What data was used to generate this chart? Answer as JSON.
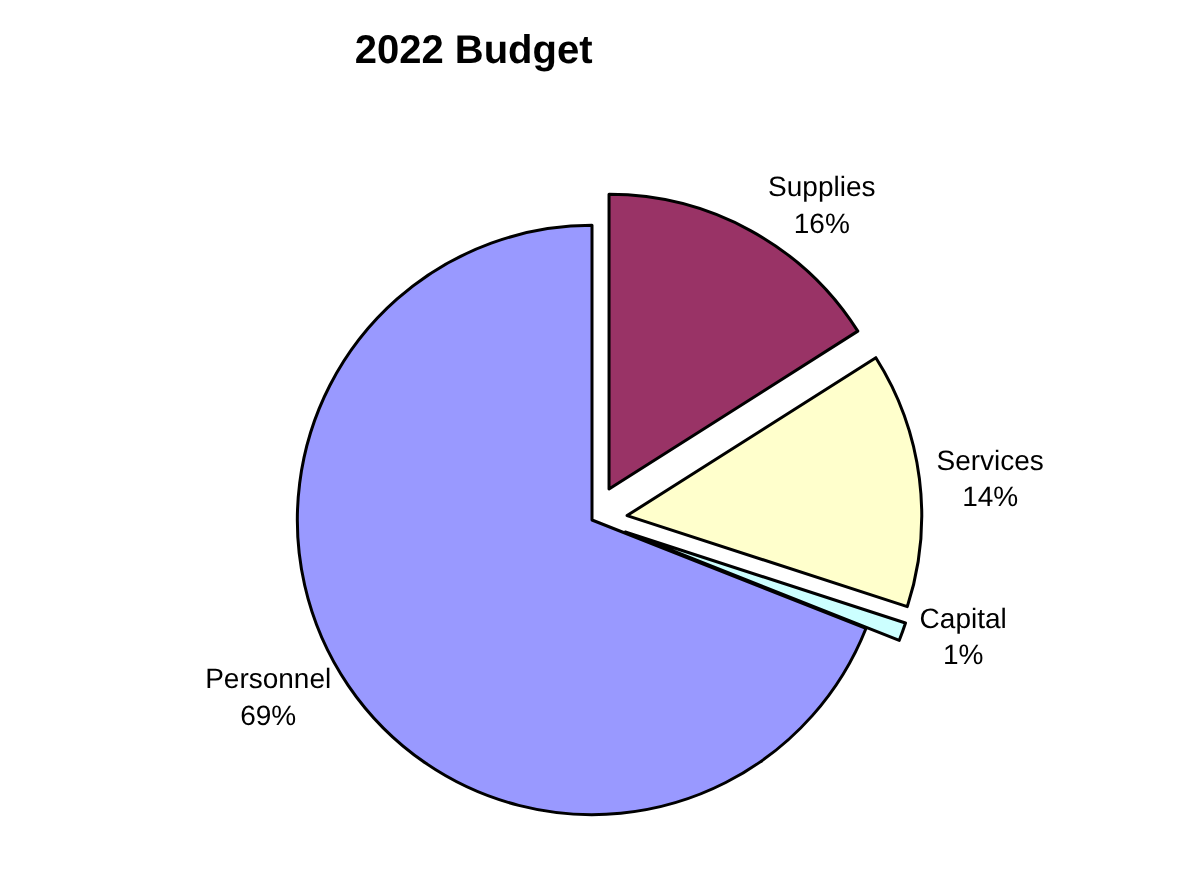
{
  "chart_data": {
    "type": "pie",
    "title": "2022 Budget",
    "categories": [
      "Supplies",
      "Services",
      "Capital",
      "Personnel"
    ],
    "values": [
      16,
      14,
      1,
      69
    ],
    "value_labels": [
      "16%",
      "14%",
      "1%",
      "69%"
    ],
    "colors": [
      "#993366",
      "#ffffcc",
      "#ccffff",
      "#9999ff"
    ],
    "legend": false
  }
}
